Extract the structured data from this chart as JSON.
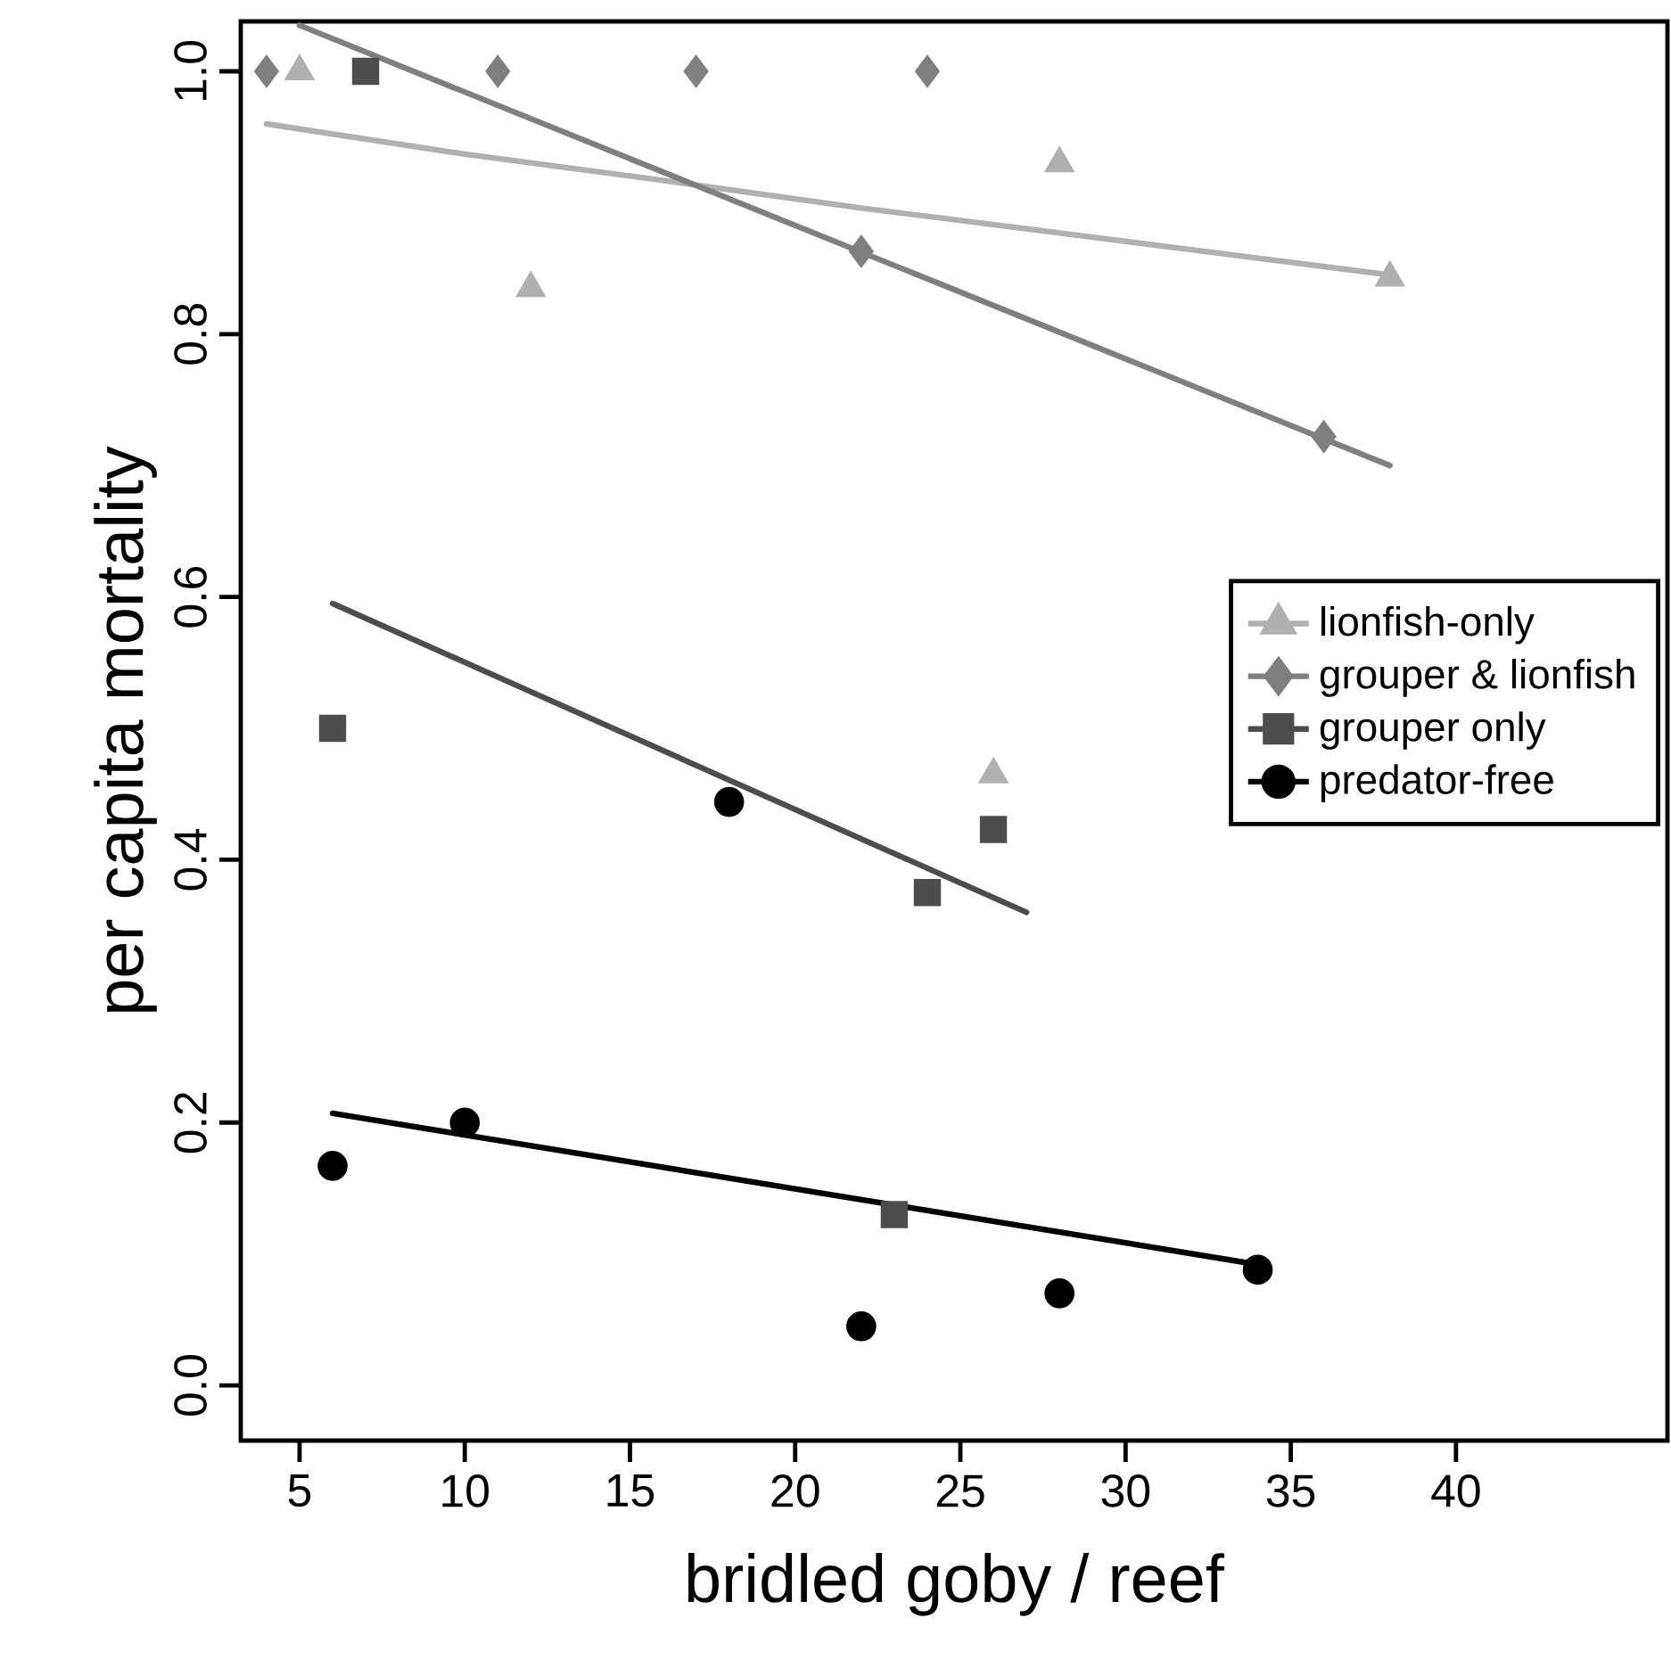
{
  "chart_data": {
    "type": "scatter",
    "xlabel": "bridled goby / reef",
    "ylabel": "per capita mortality",
    "xlim": [
      3.22,
      46.4
    ],
    "ylim": [
      -0.042,
      1.038
    ],
    "xticks": [
      5,
      10,
      15,
      20,
      25,
      30,
      35,
      40
    ],
    "yticks": [
      {
        "value": 0,
        "label": "0.0"
      },
      {
        "value": 0.2,
        "label": "0.2"
      },
      {
        "value": 0.4,
        "label": "0.4"
      },
      {
        "value": 0.6,
        "label": "0.6"
      },
      {
        "value": 0.8,
        "label": "0.8"
      },
      {
        "value": 1,
        "label": "1.0"
      }
    ],
    "grid": false,
    "legend": "right",
    "series": [
      {
        "name": "lionfish-only",
        "marker": "triangle",
        "color": "#b0b0b0",
        "x": [
          5,
          12,
          26,
          28,
          38
        ],
        "values": [
          1.0,
          0.835,
          0.465,
          0.93,
          0.843
        ]
      },
      {
        "name": "grouper & lionfish",
        "marker": "diamond",
        "color": "#7f7f7f",
        "x": [
          4,
          11,
          17,
          24,
          22,
          36
        ],
        "values": [
          1.0,
          1.0,
          1.0,
          1.0,
          0.863,
          0.722
        ]
      },
      {
        "name": "grouper only",
        "marker": "square",
        "color": "#4d4d4d",
        "x": [
          7,
          6,
          24,
          26,
          23
        ],
        "values": [
          1.0,
          0.5,
          0.375,
          0.423,
          0.13
        ]
      },
      {
        "name": "predator-free",
        "marker": "circle",
        "color": "#000000",
        "x": [
          6,
          10,
          18,
          22,
          28,
          34
        ],
        "values": [
          0.167,
          0.2,
          0.444,
          0.045,
          0.07,
          0.088
        ]
      },
      {
        "type": "line",
        "marker": "none",
        "line_style": "solid",
        "color": "#b0b0b0",
        "x": [
          4,
          10,
          16,
          22,
          28,
          33,
          38
        ],
        "values": [
          0.96,
          0.937,
          0.917,
          0.896,
          0.877,
          0.861,
          0.845
        ]
      },
      {
        "type": "line",
        "marker": "none",
        "line_style": "solid",
        "color": "#7f7f7f",
        "x": [
          5,
          38
        ],
        "values": [
          1.035,
          0.7
        ]
      },
      {
        "type": "line",
        "marker": "none",
        "line_style": "solid",
        "color": "#4d4d4d",
        "x": [
          6,
          27
        ],
        "values": [
          0.595,
          0.36
        ]
      },
      {
        "type": "line",
        "marker": "none",
        "line_style": "solid",
        "color": "#000000",
        "x": [
          6,
          34
        ],
        "values": [
          0.207,
          0.092
        ]
      }
    ]
  }
}
